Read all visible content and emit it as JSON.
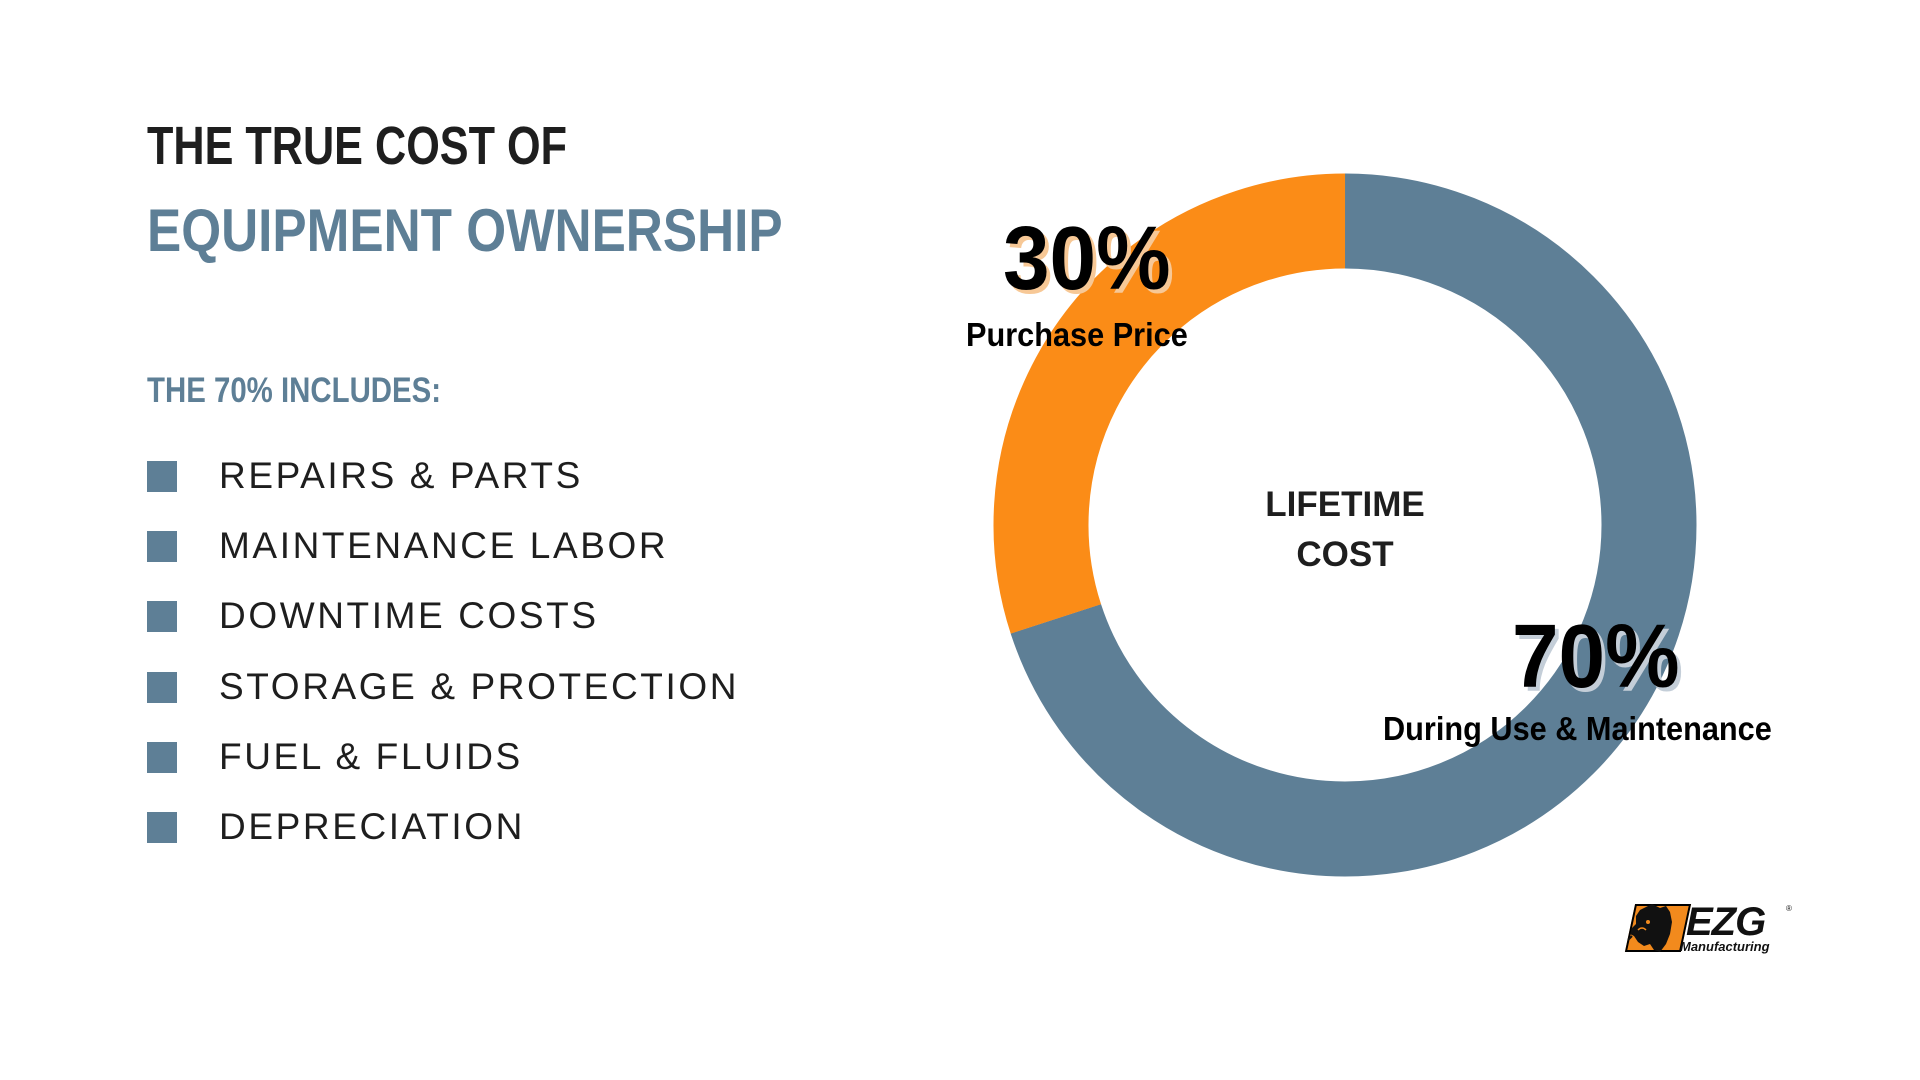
{
  "header": {
    "title_line1": "THE TRUE COST OF",
    "title_line2": "EQUIPMENT OWNERSHIP"
  },
  "includes": {
    "heading": "THE 70% INCLUDES:",
    "items": [
      {
        "label": "REPAIRS & PARTS"
      },
      {
        "label": "MAINTENANCE LABOR"
      },
      {
        "label": "DOWNTIME COSTS"
      },
      {
        "label": "STORAGE & PROTECTION"
      },
      {
        "label": "FUEL & FLUIDS"
      },
      {
        "label": "DEPRECIATION"
      }
    ],
    "bullet_color": "#5e7f96"
  },
  "chart_data": {
    "type": "pie",
    "subtype": "donut",
    "title": "LIFETIME COST",
    "center_label_lines": [
      "LIFETIME",
      "COST"
    ],
    "categories": [
      "Purchase Price",
      "During Use & Maintenance"
    ],
    "values": [
      30,
      70
    ],
    "value_labels": [
      "30%",
      "70%"
    ],
    "colors": [
      "#fb8c17",
      "#5e7f96"
    ],
    "start_angle": "top",
    "direction": "purchase price counter-clockwise from top"
  },
  "colors": {
    "accent_blue": "#5e7f96",
    "accent_orange": "#fb8c17",
    "text_dark": "#1e1e1e"
  },
  "logo": {
    "brand": "EZG",
    "registered": "®",
    "subtitle": "Manufacturing"
  }
}
